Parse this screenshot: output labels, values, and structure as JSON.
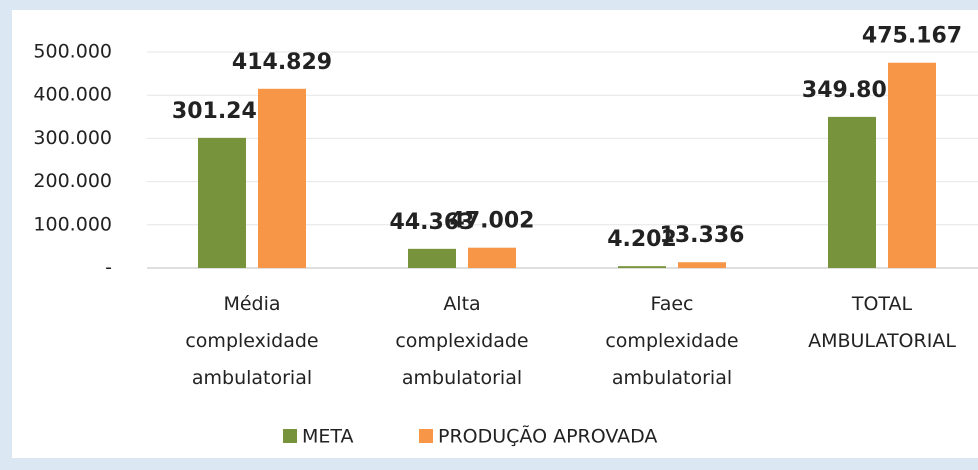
{
  "chart_data": {
    "type": "bar",
    "categories": [
      "Média complexidade ambulatorial",
      "Alta complexidade ambulatorial",
      "Faec complexidade ambulatorial",
      "TOTAL AMBULATORIAL"
    ],
    "series": [
      {
        "name": "META",
        "color": "#77933c",
        "values": [
          301241,
          44363,
          4202,
          349806
        ],
        "value_labels": [
          "301.241",
          "44.363",
          "4.202",
          "349.806"
        ]
      },
      {
        "name": "PRODUÇÃO APROVADA",
        "color": "#f79646",
        "values": [
          414829,
          47002,
          13336,
          475167
        ],
        "value_labels": [
          "414.829",
          "47.002",
          "13.336",
          "475.167"
        ]
      }
    ],
    "ylim": [
      0,
      500000
    ],
    "yticks": [
      {
        "value": 0,
        "label": "-"
      },
      {
        "value": 100000,
        "label": "100.000"
      },
      {
        "value": 200000,
        "label": "200.000"
      },
      {
        "value": 300000,
        "label": "300.000"
      },
      {
        "value": 400000,
        "label": "400.000"
      },
      {
        "value": 500000,
        "label": "500.000"
      }
    ],
    "legend": "bottom"
  }
}
